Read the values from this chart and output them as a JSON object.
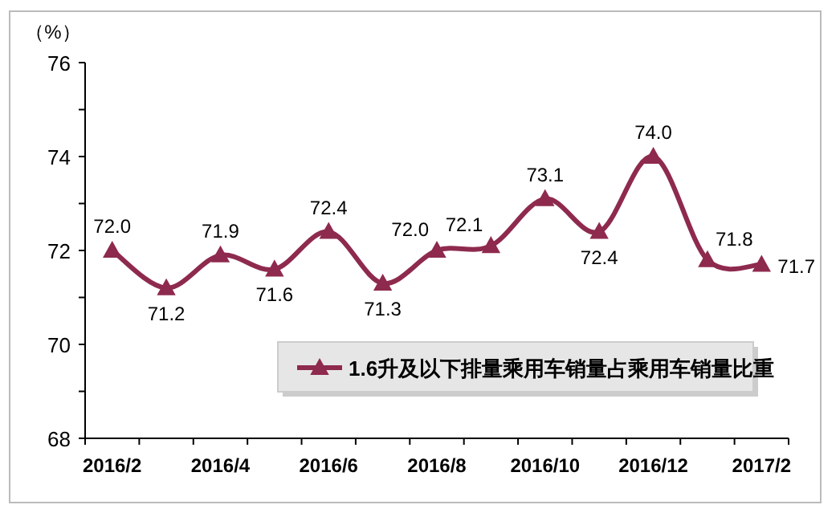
{
  "chart_data": {
    "type": "line",
    "ylabel": "（%）",
    "categories": [
      "2016/2",
      null,
      "2016/4",
      null,
      "2016/6",
      null,
      "2016/8",
      null,
      "2016/10",
      null,
      "2016/12",
      null,
      "2017/2"
    ],
    "series": [
      {
        "name": "1.6升及以下排量乘用车销量占乘用车销量比重",
        "color": "#8e2a4e",
        "values": [
          72.0,
          71.2,
          71.9,
          71.6,
          72.4,
          71.3,
          72.0,
          72.1,
          73.1,
          72.4,
          74.0,
          71.8,
          71.7
        ],
        "value_labels": [
          "72.0",
          "71.2",
          "71.9",
          "71.6",
          "72.4",
          "71.3",
          "72.0",
          "72.1",
          "73.1",
          "72.4",
          "74.0",
          "71.8",
          "71.7"
        ]
      }
    ],
    "ylim": [
      68,
      76
    ],
    "yticks": [
      68,
      {
        "value": 69,
        "label": null
      },
      70,
      {
        "value": 71,
        "label": null
      },
      72,
      {
        "value": 73,
        "label": null
      },
      74,
      {
        "value": 75,
        "label": null
      },
      76
    ],
    "marker": "triangle",
    "line_style": "solid",
    "legend": "bottom right"
  }
}
